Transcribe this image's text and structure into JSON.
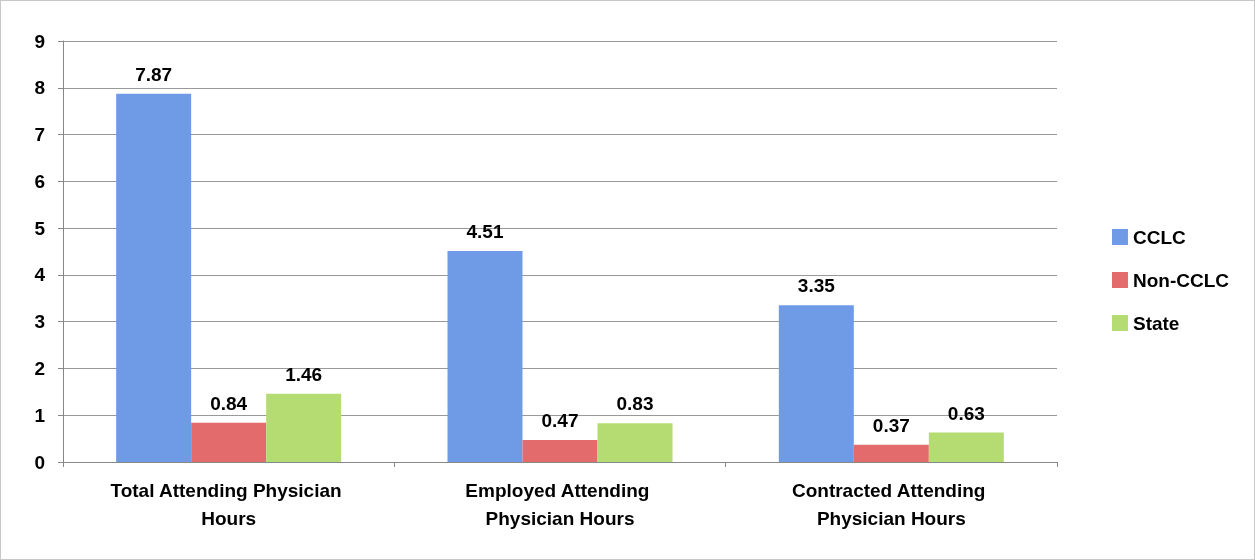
{
  "chart_data": {
    "type": "bar",
    "categories": [
      "Total Attending Physician Hours",
      "Employed Attending Physician Hours",
      "Contracted Attending Physician Hours"
    ],
    "series": [
      {
        "name": "CCLC",
        "color": "#6f9be6",
        "values": [
          7.87,
          4.51,
          3.35
        ]
      },
      {
        "name": "Non-CCLC",
        "color": "#e36b6b",
        "values": [
          0.84,
          0.47,
          0.37
        ]
      },
      {
        "name": "State",
        "color": "#b5dc72",
        "values": [
          1.46,
          0.83,
          0.63
        ]
      }
    ],
    "ylim": [
      0,
      9
    ],
    "yticks": [
      0,
      1,
      2,
      3,
      4,
      5,
      6,
      7,
      8,
      9
    ],
    "grid": "y",
    "legend": "right",
    "data_labels": true
  }
}
